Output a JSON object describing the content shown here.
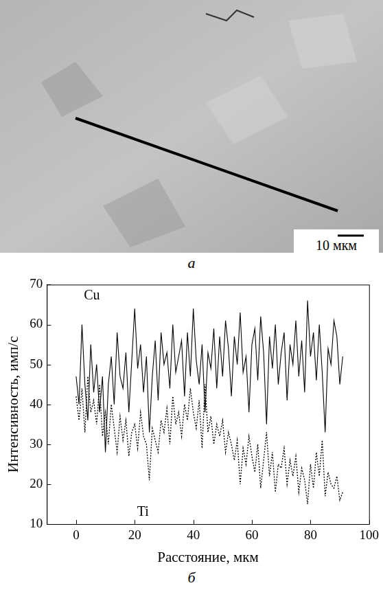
{
  "micrograph": {
    "panel_label": "а",
    "scale_bar": "10 мкм"
  },
  "chart_data": {
    "type": "line",
    "panel_label": "б",
    "x_label": "Расстояние, мкм",
    "y_label": "Интенсивность, имп/с",
    "x": [
      0,
      1,
      2,
      3,
      4,
      5,
      6,
      7,
      8,
      9,
      10,
      11,
      12,
      13,
      14,
      15,
      16,
      17,
      18,
      19,
      20,
      21,
      22,
      23,
      24,
      25,
      26,
      27,
      28,
      29,
      30,
      31,
      32,
      33,
      34,
      35,
      36,
      37,
      38,
      39,
      40,
      41,
      42,
      43,
      44,
      45,
      46,
      47,
      48,
      49,
      50,
      51,
      52,
      53,
      54,
      55,
      56,
      57,
      58,
      59,
      60,
      61,
      62,
      63,
      64,
      65,
      66,
      67,
      68,
      69,
      70,
      71,
      72,
      73,
      74,
      75,
      76,
      77,
      78,
      79,
      80,
      81,
      82,
      83,
      84,
      85,
      86,
      87,
      88,
      89,
      90,
      91
    ],
    "series": [
      {
        "name": "Cu",
        "color": "#000000",
        "line_style": "solid",
        "values": [
          47,
          40,
          60,
          45,
          36,
          55,
          43,
          50,
          38,
          47,
          28,
          45,
          52,
          40,
          58,
          47,
          44,
          53,
          38,
          51,
          64,
          49,
          55,
          43,
          52,
          33,
          47,
          56,
          41,
          58,
          50,
          53,
          44,
          60,
          48,
          52,
          56,
          42,
          58,
          47,
          64,
          51,
          45,
          55,
          38,
          53,
          49,
          59,
          44,
          57,
          47,
          61,
          54,
          42,
          57,
          50,
          63,
          48,
          52,
          38,
          55,
          59,
          46,
          62,
          53,
          35,
          57,
          49,
          60,
          45,
          53,
          58,
          41,
          55,
          50,
          61,
          47,
          56,
          43,
          66,
          52,
          58,
          46,
          60,
          48,
          33,
          54,
          50,
          61,
          57,
          45,
          52
        ]
      },
      {
        "name": "Ti",
        "color": "#000000",
        "line_style": "dotted",
        "values": [
          42,
          36,
          44,
          33,
          47,
          38,
          41,
          35,
          45,
          32,
          38,
          30,
          40,
          34,
          28,
          37,
          31,
          36,
          27,
          33,
          35,
          29,
          38,
          32,
          30,
          21,
          34,
          31,
          28,
          36,
          33,
          39,
          30,
          42,
          35,
          38,
          32,
          40,
          36,
          44,
          38,
          34,
          41,
          29,
          45,
          33,
          37,
          30,
          35,
          32,
          36,
          28,
          33,
          30,
          26,
          31,
          20,
          29,
          25,
          32,
          27,
          23,
          30,
          19,
          26,
          33,
          22,
          28,
          18,
          25,
          24,
          29,
          20,
          26,
          22,
          27,
          18,
          24,
          21,
          15,
          25,
          19,
          28,
          22,
          31,
          17,
          23,
          20,
          19,
          22,
          16,
          18
        ]
      }
    ],
    "xlim": [
      -10,
      100
    ],
    "xticks": [
      0,
      20,
      40,
      60,
      80,
      100
    ],
    "ylim": [
      10,
      70
    ],
    "yticks": [
      10,
      20,
      30,
      40,
      50,
      60,
      70
    ],
    "grid": false
  }
}
